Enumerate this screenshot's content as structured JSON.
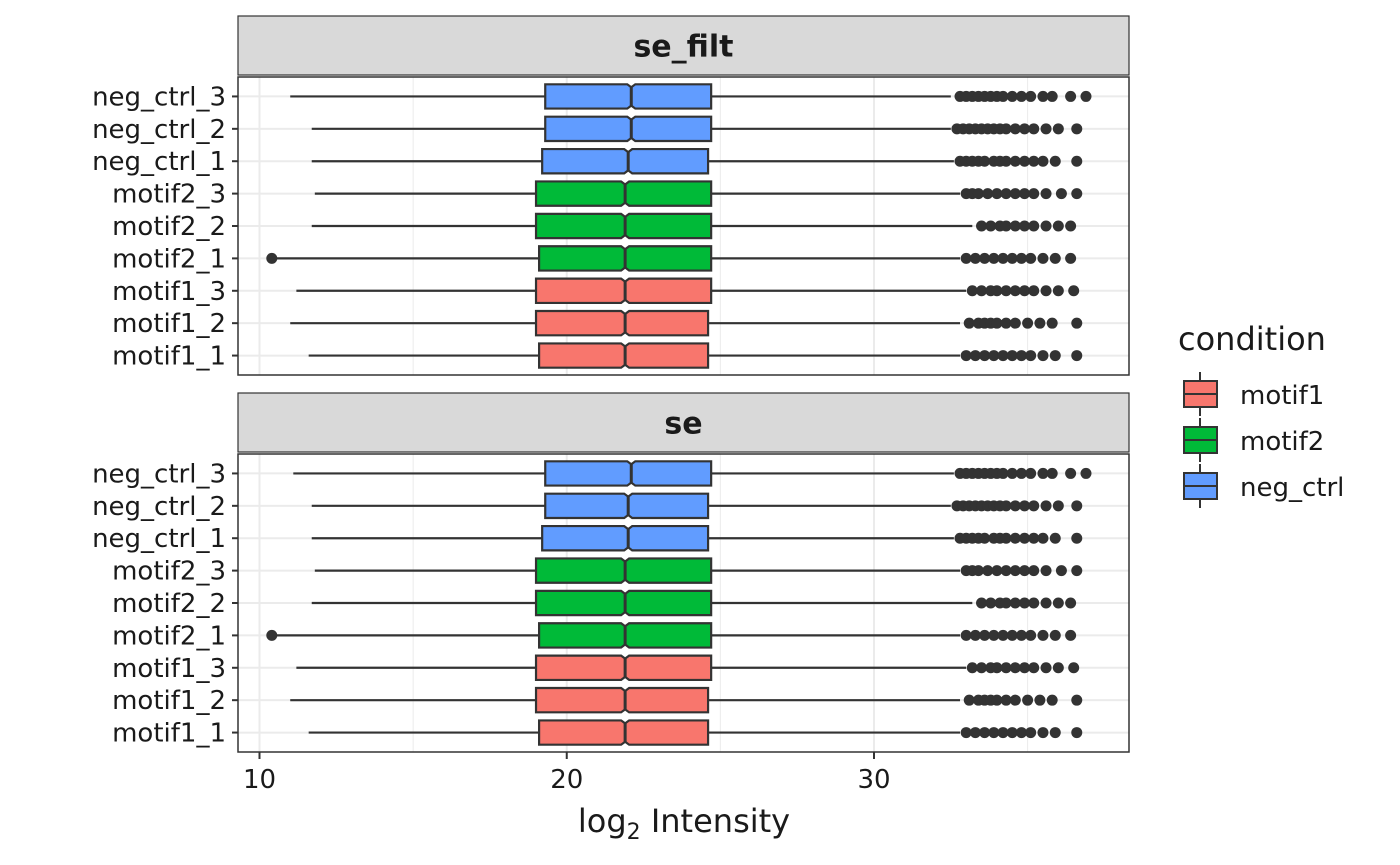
{
  "chart_data": {
    "type": "boxplot",
    "orientation": "horizontal",
    "notched": true,
    "xlabel_prefix": "log",
    "xlabel_subscript": "2",
    "xlabel_suffix": " Intensity",
    "ylabel": "",
    "xlim": [
      9.3,
      38.3
    ],
    "x_ticks": [
      10,
      20,
      30
    ],
    "grid": true,
    "legend": {
      "title": "condition",
      "position": "right",
      "entries": [
        {
          "name": "motif1",
          "color": "#F8766D"
        },
        {
          "name": "motif2",
          "color": "#00BA38"
        },
        {
          "name": "neg_ctrl",
          "color": "#619CFF"
        }
      ]
    },
    "panels": [
      {
        "title": "se_filt",
        "samples": [
          {
            "label": "neg_ctrl_3",
            "condition": "neg_ctrl",
            "whisker_low": 11.0,
            "q1": 19.3,
            "median": 22.1,
            "q3": 24.7,
            "whisker_high": 32.5,
            "outliers": [
              32.8,
              33.0,
              33.2,
              33.4,
              33.6,
              33.8,
              34.0,
              34.2,
              34.5,
              34.8,
              35.1,
              35.5,
              35.8,
              36.4,
              36.9
            ]
          },
          {
            "label": "neg_ctrl_2",
            "condition": "neg_ctrl",
            "whisker_low": 11.7,
            "q1": 19.3,
            "median": 22.1,
            "q3": 24.7,
            "whisker_high": 32.5,
            "outliers": [
              32.7,
              32.9,
              33.1,
              33.3,
              33.5,
              33.7,
              33.9,
              34.1,
              34.3,
              34.6,
              34.9,
              35.2,
              35.6,
              36.0,
              36.6
            ]
          },
          {
            "label": "neg_ctrl_1",
            "condition": "neg_ctrl",
            "whisker_low": 11.7,
            "q1": 19.2,
            "median": 22.0,
            "q3": 24.6,
            "whisker_high": 32.6,
            "outliers": [
              32.8,
              33.0,
              33.2,
              33.4,
              33.6,
              33.9,
              34.1,
              34.3,
              34.6,
              34.9,
              35.2,
              35.5,
              35.9,
              36.6
            ]
          },
          {
            "label": "motif2_3",
            "condition": "motif2",
            "whisker_low": 11.8,
            "q1": 19.0,
            "median": 21.9,
            "q3": 24.7,
            "whisker_high": 32.8,
            "outliers": [
              33.0,
              33.2,
              33.4,
              33.7,
              34.0,
              34.3,
              34.6,
              34.9,
              35.2,
              35.6,
              36.1,
              36.6
            ]
          },
          {
            "label": "motif2_2",
            "condition": "motif2",
            "whisker_low": 11.7,
            "q1": 19.0,
            "median": 21.9,
            "q3": 24.7,
            "whisker_high": 33.2,
            "outliers": [
              33.5,
              33.8,
              34.1,
              34.3,
              34.6,
              34.9,
              35.2,
              35.6,
              36.0,
              36.4
            ]
          },
          {
            "label": "motif2_1",
            "condition": "motif2",
            "whisker_low": 10.4,
            "q1": 19.1,
            "median": 21.9,
            "q3": 24.7,
            "whisker_high": 32.8,
            "outliers": [
              10.4,
              33.0,
              33.3,
              33.6,
              33.9,
              34.2,
              34.5,
              34.8,
              35.1,
              35.5,
              35.9,
              36.4
            ]
          },
          {
            "label": "motif1_3",
            "condition": "motif1",
            "whisker_low": 11.2,
            "q1": 19.0,
            "median": 21.9,
            "q3": 24.7,
            "whisker_high": 33.0,
            "outliers": [
              33.2,
              33.5,
              33.8,
              34.0,
              34.3,
              34.6,
              34.9,
              35.2,
              35.6,
              36.0,
              36.5
            ]
          },
          {
            "label": "motif1_2",
            "condition": "motif1",
            "whisker_low": 11.0,
            "q1": 19.0,
            "median": 21.9,
            "q3": 24.6,
            "whisker_high": 32.8,
            "outliers": [
              33.1,
              33.4,
              33.6,
              33.8,
              34.0,
              34.3,
              34.6,
              35.0,
              35.4,
              35.8,
              36.6
            ]
          },
          {
            "label": "motif1_1",
            "condition": "motif1",
            "whisker_low": 11.6,
            "q1": 19.1,
            "median": 21.9,
            "q3": 24.6,
            "whisker_high": 32.8,
            "outliers": [
              33.0,
              33.3,
              33.6,
              33.9,
              34.2,
              34.5,
              34.8,
              35.1,
              35.5,
              35.9,
              36.6
            ]
          }
        ]
      },
      {
        "title": "se",
        "samples": [
          {
            "label": "neg_ctrl_3",
            "condition": "neg_ctrl",
            "whisker_low": 11.1,
            "q1": 19.3,
            "median": 22.1,
            "q3": 24.7,
            "whisker_high": 32.6,
            "outliers": [
              32.8,
              33.0,
              33.2,
              33.4,
              33.6,
              33.8,
              34.0,
              34.2,
              34.5,
              34.8,
              35.1,
              35.5,
              35.8,
              36.4,
              36.9
            ]
          },
          {
            "label": "neg_ctrl_2",
            "condition": "neg_ctrl",
            "whisker_low": 11.7,
            "q1": 19.3,
            "median": 22.0,
            "q3": 24.6,
            "whisker_high": 32.5,
            "outliers": [
              32.7,
              32.9,
              33.1,
              33.3,
              33.5,
              33.7,
              33.9,
              34.1,
              34.3,
              34.6,
              34.9,
              35.2,
              35.6,
              36.0,
              36.6
            ]
          },
          {
            "label": "neg_ctrl_1",
            "condition": "neg_ctrl",
            "whisker_low": 11.7,
            "q1": 19.2,
            "median": 22.0,
            "q3": 24.6,
            "whisker_high": 32.6,
            "outliers": [
              32.8,
              33.0,
              33.2,
              33.4,
              33.6,
              33.9,
              34.1,
              34.3,
              34.6,
              34.9,
              35.2,
              35.5,
              35.9,
              36.6
            ]
          },
          {
            "label": "motif2_3",
            "condition": "motif2",
            "whisker_low": 11.8,
            "q1": 19.0,
            "median": 21.9,
            "q3": 24.7,
            "whisker_high": 32.8,
            "outliers": [
              33.0,
              33.2,
              33.4,
              33.7,
              34.0,
              34.3,
              34.6,
              34.9,
              35.2,
              35.6,
              36.1,
              36.6
            ]
          },
          {
            "label": "motif2_2",
            "condition": "motif2",
            "whisker_low": 11.7,
            "q1": 19.0,
            "median": 21.9,
            "q3": 24.7,
            "whisker_high": 33.2,
            "outliers": [
              33.5,
              33.8,
              34.1,
              34.3,
              34.6,
              34.9,
              35.2,
              35.6,
              36.0,
              36.4
            ]
          },
          {
            "label": "motif2_1",
            "condition": "motif2",
            "whisker_low": 10.4,
            "q1": 19.1,
            "median": 21.9,
            "q3": 24.7,
            "whisker_high": 32.8,
            "outliers": [
              10.4,
              33.0,
              33.3,
              33.6,
              33.9,
              34.2,
              34.5,
              34.8,
              35.1,
              35.5,
              35.9,
              36.4
            ]
          },
          {
            "label": "motif1_3",
            "condition": "motif1",
            "whisker_low": 11.2,
            "q1": 19.0,
            "median": 21.9,
            "q3": 24.7,
            "whisker_high": 33.0,
            "outliers": [
              33.2,
              33.5,
              33.8,
              34.0,
              34.3,
              34.6,
              34.9,
              35.2,
              35.6,
              36.0,
              36.5
            ]
          },
          {
            "label": "motif1_2",
            "condition": "motif1",
            "whisker_low": 11.0,
            "q1": 19.0,
            "median": 21.9,
            "q3": 24.6,
            "whisker_high": 32.8,
            "outliers": [
              33.1,
              33.4,
              33.6,
              33.8,
              34.0,
              34.3,
              34.6,
              35.0,
              35.4,
              35.8,
              36.6
            ]
          },
          {
            "label": "motif1_1",
            "condition": "motif1",
            "whisker_low": 11.6,
            "q1": 19.1,
            "median": 21.9,
            "q3": 24.6,
            "whisker_high": 32.8,
            "outliers": [
              33.0,
              33.3,
              33.6,
              33.9,
              34.2,
              34.5,
              34.8,
              35.1,
              35.5,
              35.9,
              36.6
            ]
          }
        ]
      }
    ]
  }
}
